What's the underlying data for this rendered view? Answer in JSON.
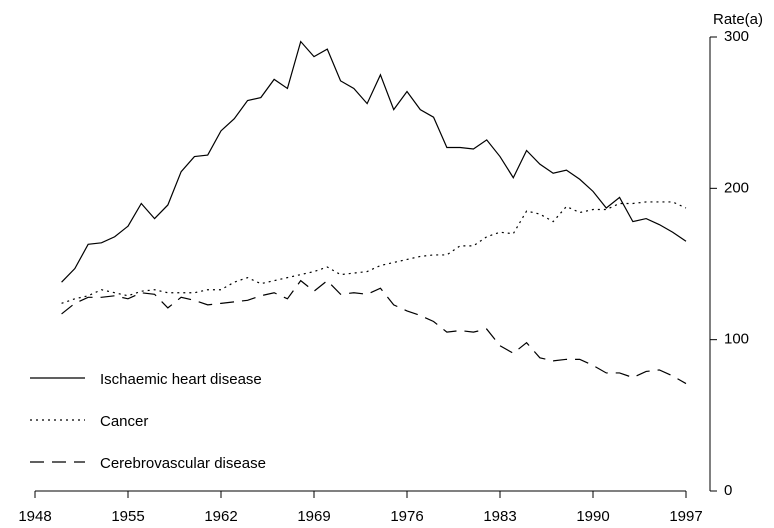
{
  "chart_data": {
    "type": "line",
    "y_axis_label": "Rate(a)",
    "y_axis_side": "right",
    "x": [
      1950,
      1951,
      1952,
      1953,
      1954,
      1955,
      1956,
      1957,
      1958,
      1959,
      1960,
      1961,
      1962,
      1963,
      1964,
      1965,
      1966,
      1967,
      1968,
      1969,
      1970,
      1971,
      1972,
      1973,
      1974,
      1975,
      1976,
      1977,
      1978,
      1979,
      1980,
      1981,
      1982,
      1983,
      1984,
      1985,
      1986,
      1987,
      1988,
      1989,
      1990,
      1991,
      1992,
      1993,
      1994,
      1995,
      1996,
      1997
    ],
    "series": [
      {
        "name": "Ischaemic heart disease",
        "color": "#000000",
        "linestyle": "solid",
        "values": [
          138,
          147,
          163,
          164,
          168,
          175,
          190,
          180,
          189,
          211,
          221,
          222,
          238,
          246,
          258,
          260,
          272,
          266,
          297,
          287,
          292,
          271,
          266,
          256,
          275,
          252,
          264,
          252,
          247,
          227,
          227,
          226,
          232,
          221,
          207,
          225,
          216,
          210,
          212,
          206,
          198,
          187,
          194,
          178,
          180,
          176,
          171,
          165
        ]
      },
      {
        "name": "Cancer",
        "color": "#000000",
        "linestyle": "dotted",
        "values": [
          124,
          127,
          129,
          133,
          131,
          129,
          132,
          133,
          131,
          131,
          131,
          133,
          133,
          138,
          141,
          137,
          139,
          141,
          143,
          145,
          148,
          143,
          144,
          145,
          149,
          151,
          153,
          155,
          156,
          156,
          162,
          162,
          168,
          171,
          170,
          185,
          183,
          178,
          188,
          184,
          186,
          186,
          190,
          190,
          191,
          191,
          191,
          187
        ]
      },
      {
        "name": "Cerebrovascular disease",
        "color": "#000000",
        "linestyle": "dashed",
        "values": [
          117,
          124,
          128,
          128,
          129,
          127,
          131,
          130,
          121,
          128,
          126,
          123,
          124,
          125,
          126,
          129,
          131,
          127,
          139,
          132,
          139,
          130,
          131,
          130,
          134,
          123,
          119,
          116,
          112,
          105,
          106,
          105,
          107,
          96,
          91,
          98,
          88,
          86,
          87,
          87,
          83,
          78,
          78,
          75,
          79,
          80,
          76,
          71
        ]
      }
    ],
    "xlim": [
      1948,
      1997
    ],
    "xticks": [
      1948,
      1955,
      1962,
      1969,
      1976,
      1983,
      1990,
      1997
    ],
    "ylim": [
      0,
      300
    ],
    "yticks": [
      0,
      100,
      200,
      300
    ],
    "grid": false
  }
}
